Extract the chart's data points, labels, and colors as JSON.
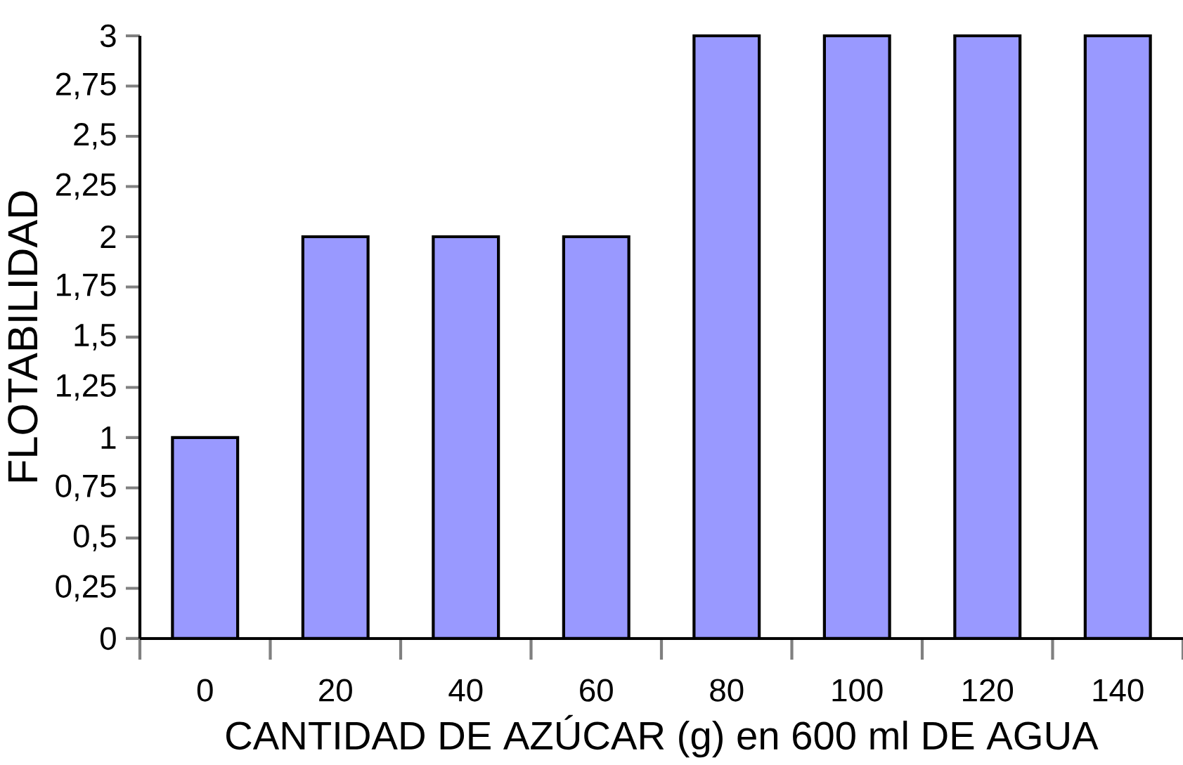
{
  "chart_data": {
    "type": "bar",
    "xlabel": "CANTIDAD DE AZÚCAR (g) en 600 ml DE AGUA",
    "ylabel": "FLOTABILIDAD",
    "categories": [
      "0",
      "20",
      "40",
      "60",
      "80",
      "100",
      "120",
      "140"
    ],
    "values": [
      1,
      2,
      2,
      2,
      3,
      3,
      3,
      3
    ],
    "color": "#9999ff",
    "ylim": [
      0,
      3
    ],
    "yticks": [
      0,
      {
        "value": 0.25,
        "label": "0,25"
      },
      {
        "value": 0.5,
        "label": "0,5"
      },
      {
        "value": 0.75,
        "label": "0,75"
      },
      1,
      {
        "value": 1.25,
        "label": "1,25"
      },
      {
        "value": 1.5,
        "label": "1,5"
      },
      {
        "value": 1.75,
        "label": "1,75"
      },
      2,
      {
        "value": 2.25,
        "label": "2,25"
      },
      {
        "value": 2.5,
        "label": "2,5"
      },
      {
        "value": 2.75,
        "label": "2,75"
      },
      3
    ],
    "grid": false
  }
}
